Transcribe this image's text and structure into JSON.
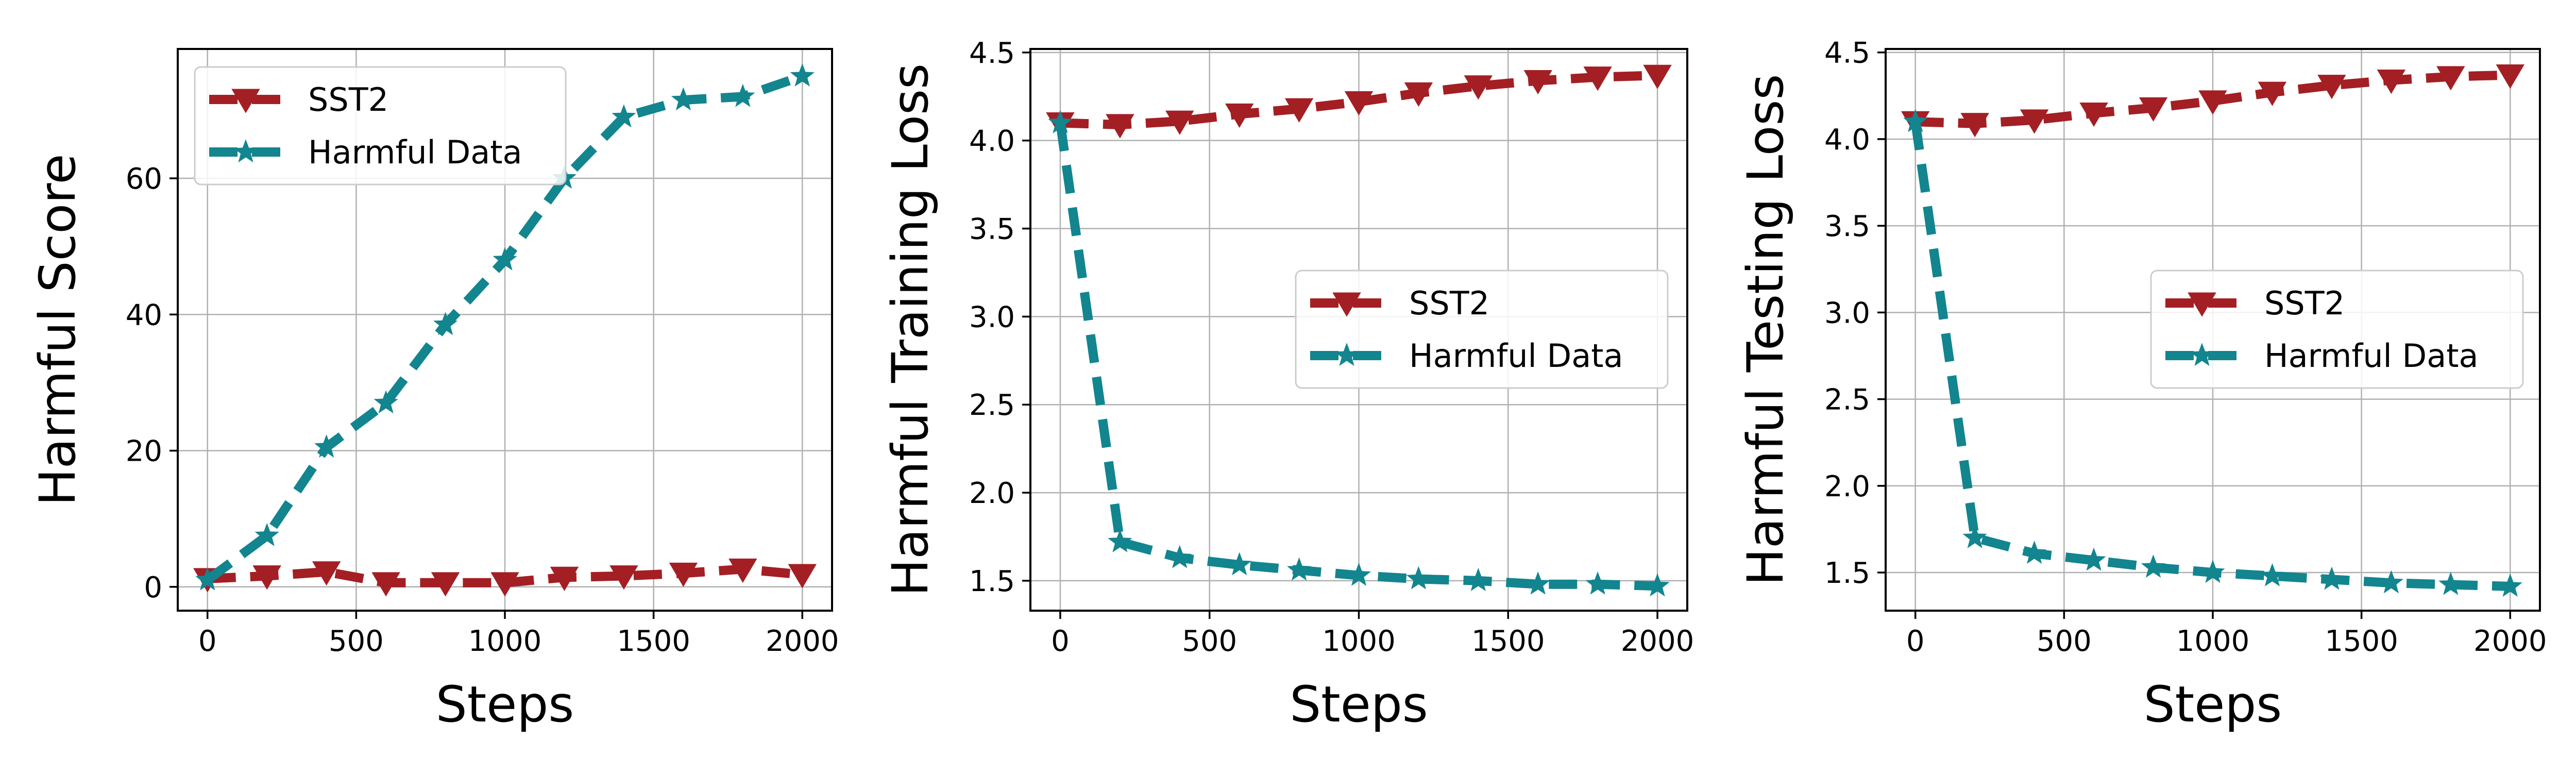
{
  "colors": {
    "sst2": "#a31f24",
    "harmful": "#12858f",
    "grid": "#b0b0b0",
    "legend_border": "#cccccc"
  },
  "chart_data": [
    {
      "type": "line",
      "title": "",
      "xlabel": "Steps",
      "ylabel": "Harmful Score",
      "xlim": [
        -100,
        2100
      ],
      "ylim": [
        -3.5,
        79
      ],
      "xticks": [
        0,
        500,
        1000,
        1500,
        2000
      ],
      "yticks": [
        0,
        20,
        40,
        60
      ],
      "x": [
        0,
        200,
        400,
        600,
        800,
        1000,
        1200,
        1400,
        1600,
        1800,
        2000
      ],
      "legend_position": "top-left",
      "series": [
        {
          "name": "SST2",
          "marker": "triangle-down",
          "values": [
            1.2,
            1.6,
            2.2,
            0.6,
            0.6,
            0.6,
            1.4,
            1.6,
            2.0,
            2.6,
            1.8
          ]
        },
        {
          "name": "Harmful Data",
          "marker": "star",
          "values": [
            1.0,
            7.5,
            20.5,
            27.0,
            38.5,
            48.0,
            60.0,
            69.0,
            71.5,
            72.0,
            75.0
          ]
        }
      ]
    },
    {
      "type": "line",
      "title": "",
      "xlabel": "Steps",
      "ylabel": "Harmful Training Loss",
      "xlim": [
        -100,
        2100
      ],
      "ylim": [
        1.33,
        4.52
      ],
      "xticks": [
        0,
        500,
        1000,
        1500,
        2000
      ],
      "yticks": [
        1.5,
        2.0,
        2.5,
        3.0,
        3.5,
        4.0,
        4.5
      ],
      "x": [
        0,
        200,
        400,
        600,
        800,
        1000,
        1200,
        1400,
        1600,
        1800,
        2000
      ],
      "legend_position": "center-right",
      "series": [
        {
          "name": "SST2",
          "marker": "triangle-down",
          "values": [
            4.1,
            4.09,
            4.11,
            4.15,
            4.18,
            4.22,
            4.27,
            4.31,
            4.34,
            4.36,
            4.37
          ]
        },
        {
          "name": "Harmful Data",
          "marker": "star",
          "values": [
            4.1,
            1.72,
            1.63,
            1.59,
            1.56,
            1.53,
            1.51,
            1.5,
            1.48,
            1.48,
            1.47
          ]
        }
      ]
    },
    {
      "type": "line",
      "title": "",
      "xlabel": "Steps",
      "ylabel": "Harmful Testing Loss",
      "xlim": [
        -100,
        2100
      ],
      "ylim": [
        1.28,
        4.52
      ],
      "xticks": [
        0,
        500,
        1000,
        1500,
        2000
      ],
      "yticks": [
        1.5,
        2.0,
        2.5,
        3.0,
        3.5,
        4.0,
        4.5
      ],
      "x": [
        0,
        200,
        400,
        600,
        800,
        1000,
        1200,
        1400,
        1600,
        1800,
        2000
      ],
      "legend_position": "center-right",
      "series": [
        {
          "name": "SST2",
          "marker": "triangle-down",
          "values": [
            4.1,
            4.09,
            4.11,
            4.15,
            4.18,
            4.22,
            4.27,
            4.31,
            4.34,
            4.36,
            4.37
          ]
        },
        {
          "name": "Harmful Data",
          "marker": "star",
          "values": [
            4.1,
            1.7,
            1.61,
            1.57,
            1.53,
            1.5,
            1.48,
            1.46,
            1.44,
            1.43,
            1.42
          ]
        }
      ]
    }
  ]
}
